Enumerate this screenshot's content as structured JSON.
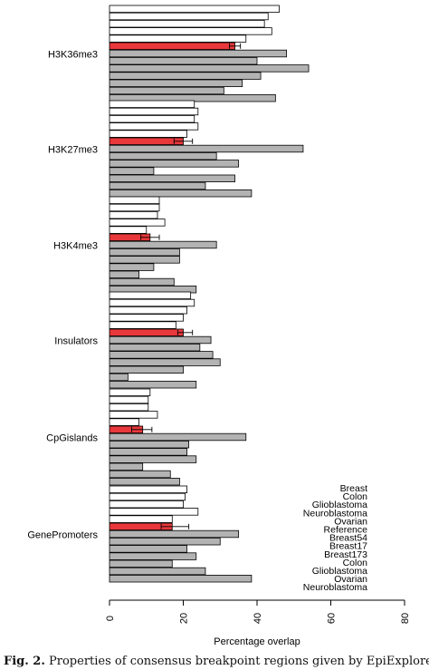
{
  "chart_data": {
    "type": "bar",
    "orientation": "horizontal",
    "xlabel": "Percentage overlap",
    "xlim": [
      0,
      80
    ],
    "xticks": [
      "0",
      "20",
      "40",
      "60",
      "80"
    ],
    "grid": false,
    "legend_placement": "bottom-right",
    "legend": [
      "Breast",
      "Colon",
      "Glioblastoma",
      "Neuroblastoma",
      "Ovarian",
      "Reference",
      "Breast54",
      "Breast17",
      "Breast173",
      "Colon",
      "Glioblastoma",
      "Ovarian",
      "Neuroblastoma"
    ],
    "colors": {
      "white": "#ffffff",
      "reference": "#e8383b",
      "grey": "#b3b3b3",
      "outline": "#000000"
    },
    "groups": [
      {
        "label": "H3K36me3",
        "white": [
          46,
          43,
          42,
          44,
          37
        ],
        "reference": 34,
        "reference_error": [
          32.5,
          35.5
        ],
        "grey": [
          48,
          40,
          54,
          41,
          36,
          31,
          45
        ]
      },
      {
        "label": "H3K27me3",
        "white": [
          23,
          24,
          23,
          24,
          21
        ],
        "reference": 20,
        "reference_error": [
          17.5,
          22.5
        ],
        "grey": [
          52.5,
          29,
          35,
          12,
          34,
          26,
          38.5
        ]
      },
      {
        "label": "H3K4me3",
        "white": [
          13.5,
          13.5,
          13,
          15,
          10
        ],
        "reference": 11,
        "reference_error": [
          8.5,
          13.5
        ],
        "grey": [
          29,
          19,
          19,
          12,
          8,
          17.5,
          23.5
        ]
      },
      {
        "label": "Insulators",
        "white": [
          22,
          23,
          21,
          20,
          18
        ],
        "reference": 20,
        "reference_error": [
          18.5,
          22.5
        ],
        "grey": [
          27.5,
          24.5,
          28,
          30,
          20,
          5,
          23.5
        ]
      },
      {
        "label": "CpGislands",
        "white": [
          11,
          10.5,
          10.5,
          13,
          8
        ],
        "reference": 9,
        "reference_error": [
          6,
          11.5
        ],
        "grey": [
          37,
          21.5,
          21,
          23.5,
          9,
          16.5,
          19
        ]
      },
      {
        "label": "GenePromoters",
        "white": [
          21,
          20.5,
          20,
          24,
          17
        ],
        "reference": 17,
        "reference_error": [
          14,
          21.5
        ],
        "grey": [
          35,
          30,
          21,
          23.5,
          17,
          26,
          38.5
        ]
      }
    ]
  },
  "caption": {
    "label": "Fig. 2.",
    "text": " Properties of consensus breakpoint regions given by EpiExplorer"
  }
}
